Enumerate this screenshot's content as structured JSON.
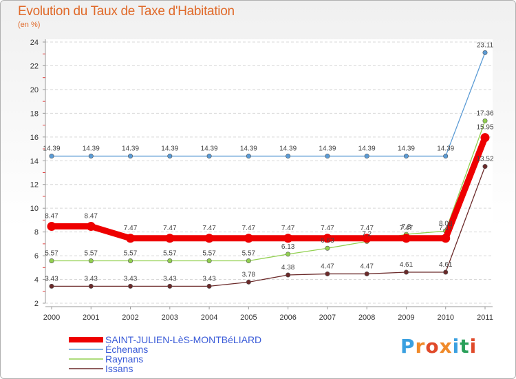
{
  "title": "Evolution du Taux de Taxe d'Habitation",
  "subtitle": "(en %)",
  "logo": {
    "text": "Proxiti",
    "colors": [
      "#3aa0e0",
      "#f08a2a",
      "#e04a2a",
      "#f08a2a",
      "#3aa0e0",
      "#2aa05a",
      "#e04a2a"
    ]
  },
  "chart_data": {
    "type": "line",
    "x": [
      "2000",
      "2001",
      "2002",
      "2003",
      "2004",
      "2005",
      "2006",
      "2007",
      "2008",
      "2009",
      "2010",
      "2011"
    ],
    "ylim": [
      2,
      24
    ],
    "yticks": [
      "2",
      "4",
      "6",
      "8",
      "10",
      "12",
      "14",
      "16",
      "18",
      "20",
      "22",
      "24"
    ],
    "grid": "horizontal dashed",
    "legend_position": "bottom-left",
    "series": [
      {
        "name": "SAINT-JULIEN-LèS-MONTBéLIARD",
        "color": "#ee0000",
        "width": 9,
        "values": [
          8.47,
          8.47,
          7.47,
          7.47,
          7.47,
          7.47,
          7.47,
          7.47,
          7.47,
          7.47,
          7.47,
          15.95
        ],
        "labels": [
          "8.47",
          "8.47",
          "7.47",
          "7.47",
          "7.47",
          "7.47",
          "7.47",
          "7.47",
          "7.47",
          "7.47",
          "7.47",
          "15.95"
        ]
      },
      {
        "name": "Échenans",
        "color": "#5b9bd5",
        "width": 1.3,
        "values": [
          14.39,
          14.39,
          14.39,
          14.39,
          14.39,
          14.39,
          14.39,
          14.39,
          14.39,
          14.39,
          14.39,
          23.11
        ],
        "labels": [
          "14.39",
          "14.39",
          "14.39",
          "14.39",
          "14.39",
          "14.39",
          "14.39",
          "14.39",
          "14.39",
          "14.39",
          "14.39",
          "23.11"
        ]
      },
      {
        "name": "Raynans",
        "color": "#92d050",
        "width": 1.3,
        "values": [
          5.57,
          5.57,
          5.57,
          5.57,
          5.57,
          5.57,
          6.13,
          6.63,
          7.2,
          7.8,
          8.08,
          17.36
        ],
        "labels": [
          "5.57",
          "5.57",
          "5.57",
          "5.57",
          "5.57",
          "5.57",
          "6.13",
          "6.63",
          "7.2",
          "7.8",
          "8.08",
          "17.36"
        ]
      },
      {
        "name": "Issans",
        "color": "#6b2a2a",
        "width": 1.3,
        "values": [
          3.43,
          3.43,
          3.43,
          3.43,
          3.43,
          3.78,
          4.38,
          4.47,
          4.47,
          4.61,
          4.61,
          13.52
        ],
        "labels": [
          "3.43",
          "3.43",
          "3.43",
          "3.43",
          "3.43",
          "3.78",
          "4.38",
          "4.47",
          "4.47",
          "4.61",
          "4.61",
          "13.52"
        ]
      }
    ]
  }
}
